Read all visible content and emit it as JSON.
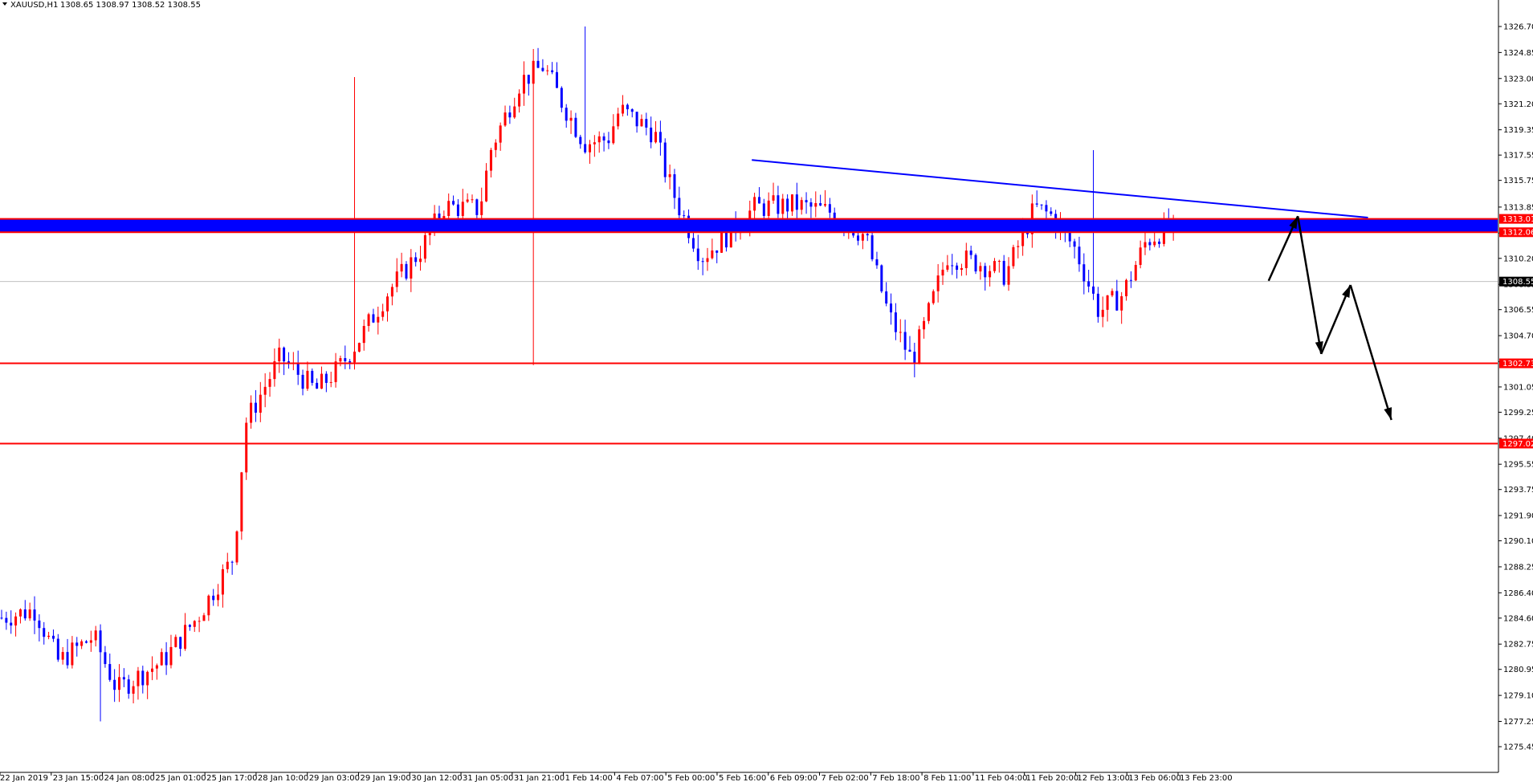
{
  "header": {
    "symbol": "XAUUSD,H1",
    "ohlc": "1308.65 1308.97 1308.52 1308.55"
  },
  "chart_data": {
    "type": "candlestick",
    "price_ticks": [
      "1326.70",
      "1324.85",
      "1323.00",
      "1321.20",
      "1319.35",
      "1317.55",
      "1315.75",
      "1313.85",
      "1312.00",
      "1310.20",
      "1308.35",
      "1306.55",
      "1304.70",
      "1302.85",
      "1301.05",
      "1299.25",
      "1297.40",
      "1295.55",
      "1293.75",
      "1291.90",
      "1290.10",
      "1288.25",
      "1286.40",
      "1284.60",
      "1282.75",
      "1280.95",
      "1279.10",
      "1277.25",
      "1275.45"
    ],
    "time_ticks": [
      "22 Jan 2019",
      "23 Jan 15:00",
      "24 Jan 08:00",
      "25 Jan 01:00",
      "25 Jan 17:00",
      "28 Jan 10:00",
      "29 Jan 03:00",
      "29 Jan 19:00",
      "30 Jan 12:00",
      "31 Jan 05:00",
      "31 Jan 21:00",
      "1 Feb 14:00",
      "4 Feb 07:00",
      "5 Feb 00:00",
      "5 Feb 16:00",
      "6 Feb 09:00",
      "7 Feb 02:00",
      "7 Feb 18:00",
      "8 Feb 11:00",
      "11 Feb 04:00",
      "11 Feb 20:00",
      "12 Feb 13:00",
      "13 Feb 06:00",
      "13 Feb 23:00"
    ],
    "ylim": [
      1275.45,
      1326.7
    ],
    "price_path": [
      [
        0,
        1284.6
      ],
      [
        0.03,
        1285.2
      ],
      [
        0.05,
        1281.5
      ],
      [
        0.08,
        1283.3
      ],
      [
        0.1,
        1279.5
      ],
      [
        0.14,
        1281.6
      ],
      [
        0.17,
        1284.8
      ],
      [
        0.2,
        1289.0
      ],
      [
        0.21,
        1298.5
      ],
      [
        0.24,
        1303.2
      ],
      [
        0.27,
        1300.8
      ],
      [
        0.29,
        1302.4
      ],
      [
        0.31,
        1304.8
      ],
      [
        0.33,
        1307.6
      ],
      [
        0.36,
        1310.8
      ],
      [
        0.38,
        1313.9
      ],
      [
        0.41,
        1313.7
      ],
      [
        0.42,
        1318.0
      ],
      [
        0.445,
        1322.8
      ],
      [
        0.465,
        1323.9
      ],
      [
        0.48,
        1321.4
      ],
      [
        0.5,
        1318.4
      ],
      [
        0.52,
        1318.7
      ],
      [
        0.53,
        1320.8
      ],
      [
        0.56,
        1319.1
      ],
      [
        0.57,
        1316.1
      ],
      [
        0.58,
        1314.0
      ],
      [
        0.6,
        1310.3
      ],
      [
        0.62,
        1311.7
      ],
      [
        0.645,
        1313.8
      ],
      [
        0.68,
        1314.0
      ],
      [
        0.71,
        1313.5
      ],
      [
        0.74,
        1311.8
      ],
      [
        0.76,
        1306.2
      ],
      [
        0.78,
        1302.9
      ],
      [
        0.79,
        1305.2
      ],
      [
        0.81,
        1310.4
      ],
      [
        0.84,
        1309.8
      ],
      [
        0.86,
        1309.0
      ],
      [
        0.885,
        1313.8
      ],
      [
        0.9,
        1313.2
      ],
      [
        0.92,
        1310.8
      ],
      [
        0.94,
        1306.4
      ],
      [
        0.96,
        1307.6
      ],
      [
        0.98,
        1311.4
      ],
      [
        1.0,
        1312.5
      ],
      [
        1.02,
        1309.6
      ],
      [
        1.04,
        1312.8
      ],
      [
        1.06,
        1308.3
      ],
      [
        1.07,
        1305.6
      ],
      [
        1.085,
        1308.6
      ]
    ],
    "wick_extremes": {
      "low": "1277.25",
      "high": "1326.70"
    },
    "horizontal_lines": [
      {
        "price": "1313.01",
        "color": "#FF0000"
      },
      {
        "price": "1312.06",
        "color": "#FF0000"
      },
      {
        "price": "1302.73",
        "color": "#FF0000"
      },
      {
        "price": "1297.02",
        "color": "#FF0000"
      }
    ],
    "zone": {
      "from": "1312.06",
      "to": "1313.01",
      "color": "#0000FF"
    },
    "current_price": "1308.55",
    "trendline": {
      "from": [
        0.643,
        1317.2
      ],
      "to": [
        1.17,
        1313.1
      ],
      "color": "#0000FF"
    },
    "projection_arrows": [
      [
        1.085,
        1308.6
      ],
      [
        1.11,
        1313.2
      ],
      [
        1.13,
        1303.4
      ],
      [
        1.155,
        1308.3
      ],
      [
        1.19,
        1298.7
      ]
    ],
    "colors": {
      "bull": "#FF0000",
      "bear": "#0000FF",
      "level_line": "#FF0000",
      "current_line": "#C0C0C0",
      "label_text": "#FFFFFF",
      "current_label_bg": "#000000",
      "arrows": "#000000"
    }
  }
}
